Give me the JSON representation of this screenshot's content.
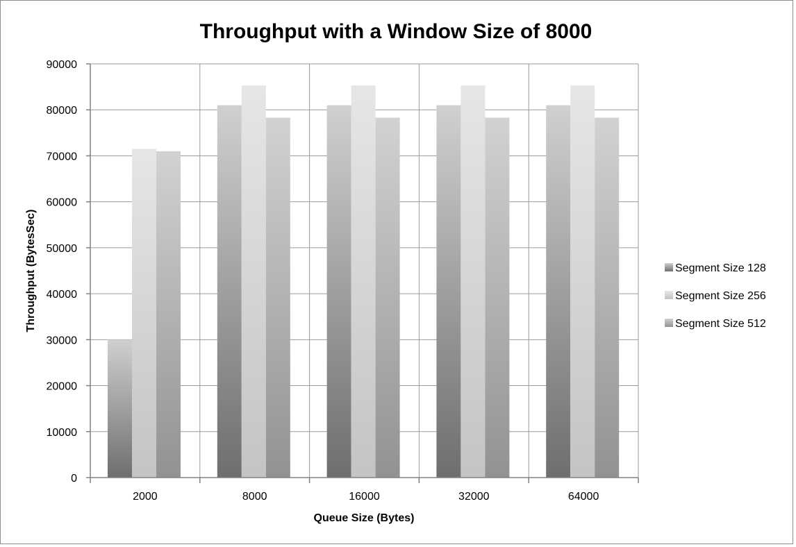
{
  "chart_data": {
    "type": "bar",
    "title": "Throughput with a Window Size of 8000",
    "xlabel": "Queue Size (Bytes)",
    "ylabel": "Throughput (BytesSec)",
    "categories": [
      "2000",
      "8000",
      "16000",
      "32000",
      "64000"
    ],
    "series": [
      {
        "name": "Segment Size 128",
        "values": [
          30000,
          81000,
          81000,
          81000,
          81000
        ]
      },
      {
        "name": "Segment Size 256",
        "values": [
          71500,
          85300,
          85300,
          85300,
          85300
        ]
      },
      {
        "name": "Segment Size 512",
        "values": [
          71000,
          78300,
          78300,
          78300,
          78300
        ]
      }
    ],
    "ylim": [
      0,
      90000
    ],
    "yticks": [
      0,
      10000,
      20000,
      30000,
      40000,
      50000,
      60000,
      70000,
      80000,
      90000
    ],
    "grid": true,
    "legend_position": "right",
    "series_colors": {
      "Segment Size 128": {
        "top": "#d0d0d0",
        "bottom": "#6e6e6e"
      },
      "Segment Size 256": {
        "top": "#e6e6e6",
        "bottom": "#c4c4c4"
      },
      "Segment Size 512": {
        "top": "#d2d2d2",
        "bottom": "#929292"
      }
    }
  }
}
